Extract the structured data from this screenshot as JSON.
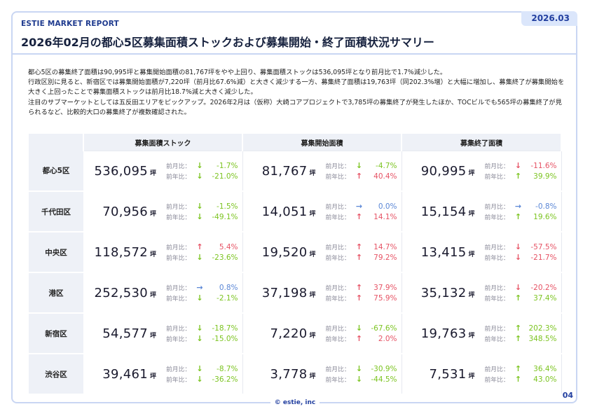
{
  "header": {
    "brand": "ESTIE MARKET REPORT",
    "date_tag": "2026.03",
    "title": "2026年02月の都心5区募集面積ストックおよび募集開始・終了面積状況サマリー"
  },
  "summary": [
    "都心5区の募集終了面積は90,995坪と募集開始面積の81,767坪をやや上回り、募集面積ストックは536,095坪となり前月比で1.7%減少した。",
    "行政区別に見ると、新宿区では募集開始面積が7,220坪（前月比67.6%減）と大きく減少する一方、募集終了面積は19,763坪（同202.3%増）と大幅に増加し、募集終了が募集開始を大きく上回ったことで募集面積ストックは前月比18.7%減と大きく減少した。",
    "注目のサブマーケットとしては五反田エリアをピックアップ。2026年2月は（仮称）大崎コアプロジェクトで3,785坪の募集終了が発生したほか、TOCビルでも565坪の募集終了が見られるなど、比較的大口の募集終了が複数確認された。"
  ],
  "table": {
    "columns": [
      "募集面積ストック",
      "募集開始面積",
      "募集終了面積"
    ],
    "unit": "坪",
    "mom_label": "前月比：",
    "yoy_label": "前年比：",
    "rows": [
      {
        "area": "都心5区",
        "cells": [
          {
            "value": "536,095",
            "mom": "-1.7%",
            "mom_dir": "down",
            "yoy": "-21.0%",
            "yoy_dir": "down"
          },
          {
            "value": "81,767",
            "mom": "-4.7%",
            "mom_dir": "down",
            "yoy": "40.4%",
            "yoy_dir": "up"
          },
          {
            "value": "90,995",
            "mom": "-11.6%",
            "mom_dir": "down-red",
            "yoy": "39.9%",
            "yoy_dir": "up-green"
          }
        ]
      },
      {
        "area": "千代田区",
        "cells": [
          {
            "value": "70,956",
            "mom": "-1.5%",
            "mom_dir": "down",
            "yoy": "-49.1%",
            "yoy_dir": "down"
          },
          {
            "value": "14,051",
            "mom": "0.0%",
            "mom_dir": "flat",
            "yoy": "14.1%",
            "yoy_dir": "up"
          },
          {
            "value": "15,154",
            "mom": "-0.8%",
            "mom_dir": "flat",
            "yoy": "19.6%",
            "yoy_dir": "up-green"
          }
        ]
      },
      {
        "area": "中央区",
        "cells": [
          {
            "value": "118,572",
            "mom": "5.4%",
            "mom_dir": "up",
            "yoy": "-23.6%",
            "yoy_dir": "down"
          },
          {
            "value": "19,520",
            "mom": "14.7%",
            "mom_dir": "up",
            "yoy": "79.2%",
            "yoy_dir": "up"
          },
          {
            "value": "13,415",
            "mom": "-57.5%",
            "mom_dir": "down-red",
            "yoy": "-21.7%",
            "yoy_dir": "down-red"
          }
        ]
      },
      {
        "area": "港区",
        "cells": [
          {
            "value": "252,530",
            "mom": "0.8%",
            "mom_dir": "flat",
            "yoy": "-2.1%",
            "yoy_dir": "down"
          },
          {
            "value": "37,198",
            "mom": "37.9%",
            "mom_dir": "up",
            "yoy": "75.9%",
            "yoy_dir": "up"
          },
          {
            "value": "35,132",
            "mom": "-20.2%",
            "mom_dir": "down-red",
            "yoy": "37.4%",
            "yoy_dir": "up-green"
          }
        ]
      },
      {
        "area": "新宿区",
        "cells": [
          {
            "value": "54,577",
            "mom": "-18.7%",
            "mom_dir": "down",
            "yoy": "-15.0%",
            "yoy_dir": "down"
          },
          {
            "value": "7,220",
            "mom": "-67.6%",
            "mom_dir": "down",
            "yoy": "2.0%",
            "yoy_dir": "up"
          },
          {
            "value": "19,763",
            "mom": "202.3%",
            "mom_dir": "up-green",
            "yoy": "348.5%",
            "yoy_dir": "up-green"
          }
        ]
      },
      {
        "area": "渋谷区",
        "cells": [
          {
            "value": "39,461",
            "mom": "-8.7%",
            "mom_dir": "down",
            "yoy": "-36.2%",
            "yoy_dir": "down"
          },
          {
            "value": "3,778",
            "mom": "-30.9%",
            "mom_dir": "down",
            "yoy": "-44.5%",
            "yoy_dir": "down"
          },
          {
            "value": "7,531",
            "mom": "36.4%",
            "mom_dir": "up-green",
            "yoy": "43.0%",
            "yoy_dir": "up-green"
          }
        ]
      }
    ]
  },
  "footer": {
    "copyright": "© estie, inc",
    "page_number": "04"
  },
  "colors": {
    "accent": "#2340a0",
    "positive_green": "#7cc421",
    "negative_red": "#e65365",
    "neutral_blue": "#5b87d6"
  }
}
